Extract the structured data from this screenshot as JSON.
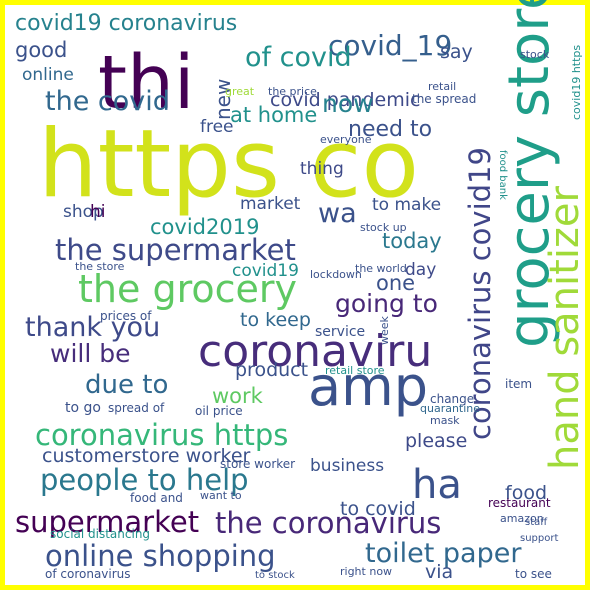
{
  "words": [
    "https co",
    "thi",
    "grocery store",
    "hand sanitizer",
    "amp",
    "coronaviru",
    "the grocery",
    "the supermarket",
    "coronavirus https",
    "people to help",
    "supermarket",
    "the coronavirus",
    "online shopping",
    "toilet paper",
    "covid19 coronavirus",
    "covid_19",
    "of covid",
    "the covid",
    "covid pandemic",
    "now",
    "need to",
    "at home",
    "good",
    "online",
    "say",
    "coronavirus covid19",
    "wa",
    "covid2019",
    "today",
    "one",
    "going to",
    "thank you",
    "will be",
    "due to",
    "to keep",
    "product",
    "work",
    "ha",
    "please",
    "business",
    "customerstore worker",
    "food",
    "to covid",
    "via",
    "day",
    "covid19",
    "market",
    "to make",
    "thing",
    "free",
    "shop",
    "hi",
    "new",
    "service",
    "retail store",
    "oil price",
    "to go",
    "mask",
    "quarantine",
    "amazon",
    "restaurant",
    "right now",
    "of coronavirus",
    "social distancing",
    "food and",
    "want to",
    "lockdown",
    "stock up",
    "the store",
    "the world",
    "the spread",
    "everyone",
    "great",
    "the price",
    "retail",
    "stock",
    "food bank",
    "spread of",
    "prices of",
    "covid19 https",
    "item",
    "change",
    "staff",
    "support",
    "to see",
    "to stock",
    "week",
    "store worker"
  ]
}
